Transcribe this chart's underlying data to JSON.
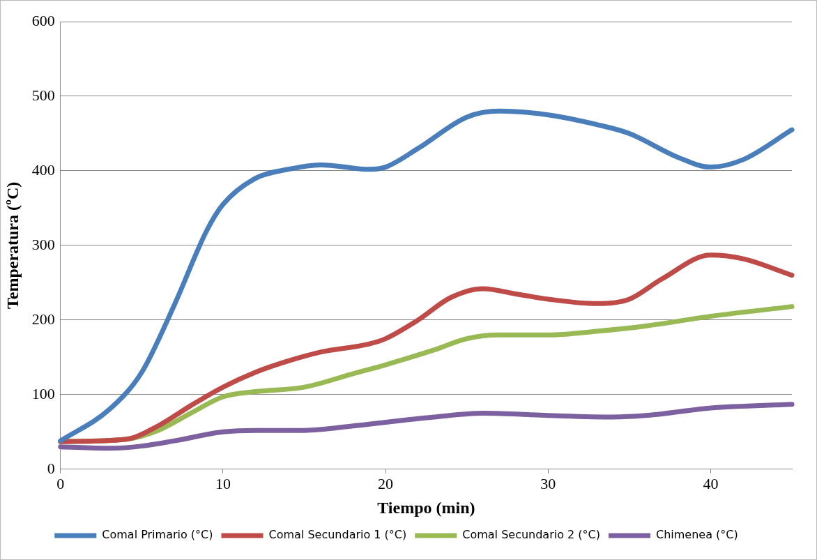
{
  "chart_data": {
    "type": "line",
    "xlabel": "Tiempo (min)",
    "ylabel": "Temperatura (ºC)",
    "xlim": [
      0,
      45
    ],
    "xticks": [
      0,
      10,
      20,
      30,
      40
    ],
    "ylim": [
      0,
      600
    ],
    "yticks": [
      0,
      100,
      200,
      300,
      400,
      500,
      600
    ],
    "grid": "y",
    "legend": "bottom",
    "marker": "none",
    "line_style": "solid",
    "series": [
      {
        "name": "Comal Primario (°C)",
        "color": "#4a7ebb",
        "x": [
          0,
          3,
          5,
          7,
          9,
          10,
          12,
          14,
          16,
          19,
          20,
          22,
          25,
          27,
          30,
          33,
          35,
          38,
          40,
          42,
          45
        ],
        "values": [
          38,
          80,
          130,
          220,
          320,
          355,
          390,
          402,
          408,
          402,
          405,
          430,
          472,
          480,
          475,
          462,
          450,
          418,
          405,
          415,
          455
        ]
      },
      {
        "name": "Comal Secundario 1 (°C)",
        "color": "#be4b48",
        "x": [
          0,
          4,
          6,
          8,
          10,
          12,
          14,
          16,
          19,
          20,
          22,
          24,
          26,
          28,
          30,
          33,
          35,
          37,
          40,
          42,
          45
        ],
        "values": [
          37,
          40,
          58,
          85,
          110,
          130,
          145,
          157,
          168,
          175,
          200,
          230,
          242,
          235,
          228,
          222,
          228,
          255,
          287,
          282,
          260
        ]
      },
      {
        "name": "Comal Secundario 2 (°C)",
        "color": "#98b954",
        "x": [
          0,
          4,
          6,
          8,
          10,
          12,
          15,
          18,
          20,
          23,
          25,
          27,
          30,
          33,
          36,
          40,
          45
        ],
        "values": [
          37,
          40,
          52,
          75,
          97,
          104,
          110,
          128,
          140,
          160,
          175,
          180,
          180,
          185,
          192,
          205,
          218
        ]
      },
      {
        "name": "Chimenea (°C)",
        "color": "#7d60a0",
        "x": [
          0,
          3,
          5,
          7,
          10,
          12,
          15,
          18,
          20,
          23,
          26,
          30,
          34,
          36,
          40,
          45
        ],
        "values": [
          30,
          28,
          31,
          38,
          50,
          52,
          52,
          58,
          63,
          70,
          75,
          72,
          70,
          72,
          82,
          87
        ]
      }
    ]
  }
}
